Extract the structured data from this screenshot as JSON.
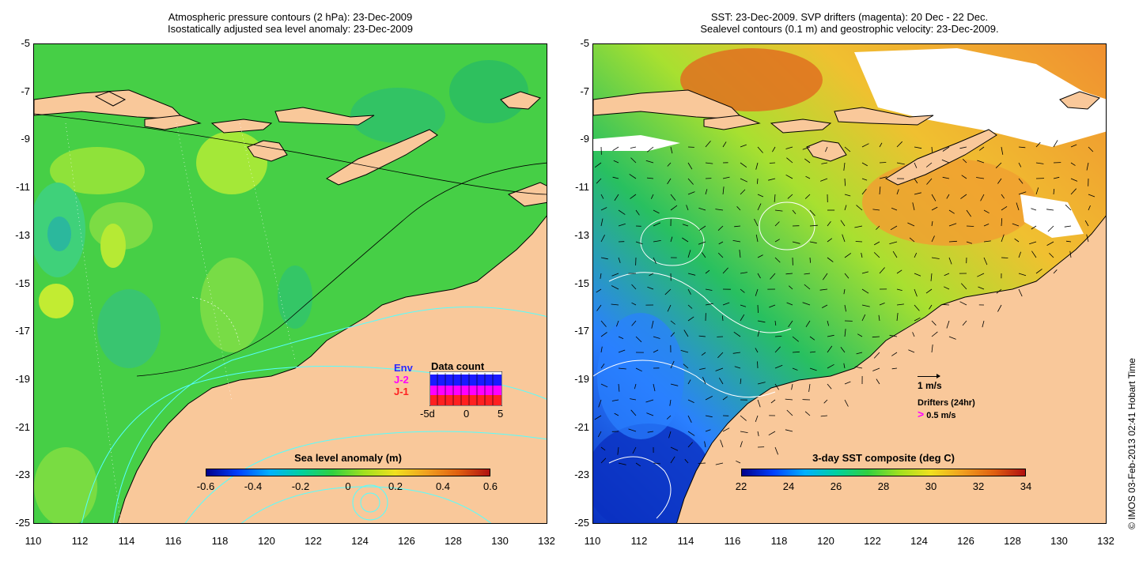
{
  "left_panel": {
    "title_line1": "Atmospheric pressure contours (2 hPa): 23-Dec-2009",
    "title_line2": "Isostatically adjusted sea level anomaly: 23-Dec-2009",
    "colorbar_title": "Sea level anomaly (m)",
    "colorbar_ticks": [
      "-0.6",
      "-0.4",
      "-0.2",
      "0",
      "0.2",
      "0.4",
      "0.6"
    ],
    "data_count": {
      "title": "Data count",
      "satellites": [
        "Env",
        "J-2",
        "J-1"
      ],
      "satellite_colors": [
        "#2a2aff",
        "#ff00ff",
        "#ff2020"
      ],
      "axis_ticks": [
        "-5d",
        "0",
        "5"
      ]
    }
  },
  "right_panel": {
    "title_line1": "SST: 23-Dec-2009. SVP drifters (magenta): 20 Dec - 22 Dec.",
    "title_line2": "Sealevel contours (0.1 m) and geostrophic velocity: 23-Dec-2009.",
    "colorbar_title": "3-day SST composite (deg C)",
    "colorbar_ticks": [
      "22",
      "24",
      "26",
      "28",
      "30",
      "32",
      "34"
    ],
    "velocity_legend": "1 m/s",
    "drifter_legend_title": "Drifters (24hr)",
    "drifter_legend_value": "0.5 m/s",
    "drifter_symbol": ">"
  },
  "axes": {
    "y_ticks": [
      "-5",
      "-7",
      "-9",
      "-11",
      "-13",
      "-15",
      "-17",
      "-19",
      "-21",
      "-23",
      "-25"
    ],
    "x_ticks": [
      "110",
      "112",
      "114",
      "116",
      "118",
      "120",
      "122",
      "124",
      "126",
      "128",
      "130",
      "132"
    ]
  },
  "colors": {
    "land": "#f9c89a",
    "ocean_green": "#3ccc3c",
    "ocean_light": "#88e040",
    "ocean_cyan": "#2dbf9a",
    "sst_warm": "#f0a030",
    "sst_hot": "#d84010",
    "sst_cool": "#2a80ff",
    "sst_cold": "#0a30c0"
  },
  "copyright": "© IMOS 03-Feb-2013 02:41 Hobart Time"
}
